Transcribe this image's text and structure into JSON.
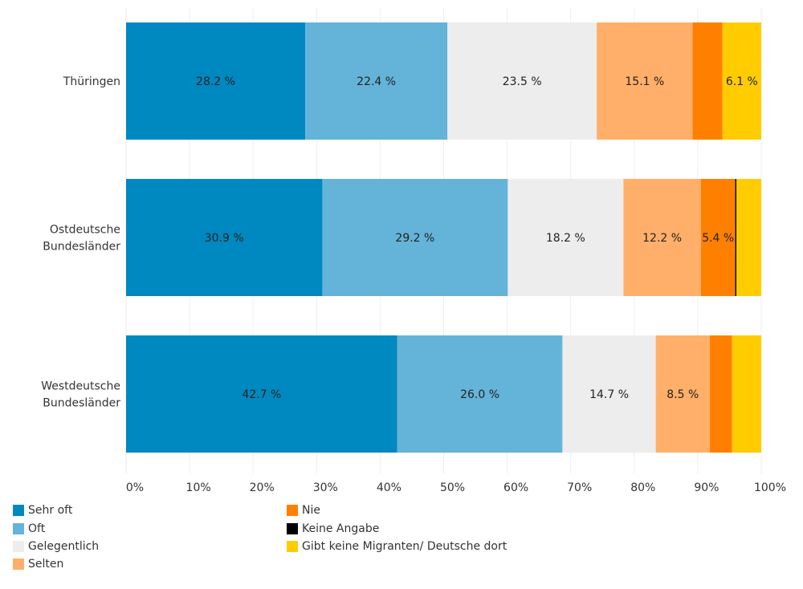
{
  "chart_data": {
    "type": "bar",
    "orientation": "horizontal",
    "stacked": true,
    "categories": [
      "Thüringen",
      [
        "Ostdeutsche",
        "Bundesländer"
      ],
      [
        "Westdeutsche",
        "Bundesländer"
      ]
    ],
    "xlim": [
      0,
      100
    ],
    "x_ticks": [
      "0%",
      "10%",
      "20%",
      "30%",
      "40%",
      "50%",
      "60%",
      "70%",
      "80%",
      "90%",
      "100%"
    ],
    "grid": true,
    "legend_position": "bottom",
    "series": [
      {
        "name": "Sehr oft",
        "color": "#0088C0",
        "values": [
          28.2,
          30.9,
          42.7
        ],
        "labels": [
          "28.2 %",
          "30.9 %",
          "42.7 %"
        ]
      },
      {
        "name": "Oft",
        "color": "#64B3D9",
        "values": [
          22.4,
          29.2,
          26.0
        ],
        "labels": [
          "22.4 %",
          "29.2 %",
          "26.0 %"
        ]
      },
      {
        "name": "Gelegentlich",
        "color": "#EDEDED",
        "values": [
          23.5,
          18.2,
          14.7
        ],
        "labels": [
          "23.5 %",
          "18.2 %",
          "14.7 %"
        ]
      },
      {
        "name": "Selten",
        "color": "#FFAF69",
        "values": [
          15.1,
          12.2,
          8.5
        ],
        "labels": [
          "15.1 %",
          "12.2 %",
          "8.5 %"
        ]
      },
      {
        "name": "Nie",
        "color": "#FF8000",
        "values": [
          4.7,
          5.4,
          3.5
        ],
        "labels": [
          null,
          "5.4 %",
          null
        ]
      },
      {
        "name": "Keine Angabe",
        "color": "#000000",
        "values": [
          0,
          0.2,
          0
        ],
        "labels": [
          null,
          null,
          null
        ]
      },
      {
        "name": "Gibt keine Migranten/ Deutsche dort",
        "color": "#FFCC00",
        "values": [
          6.1,
          3.9,
          4.6
        ],
        "labels": [
          "6.1 %",
          null,
          null
        ]
      }
    ]
  }
}
